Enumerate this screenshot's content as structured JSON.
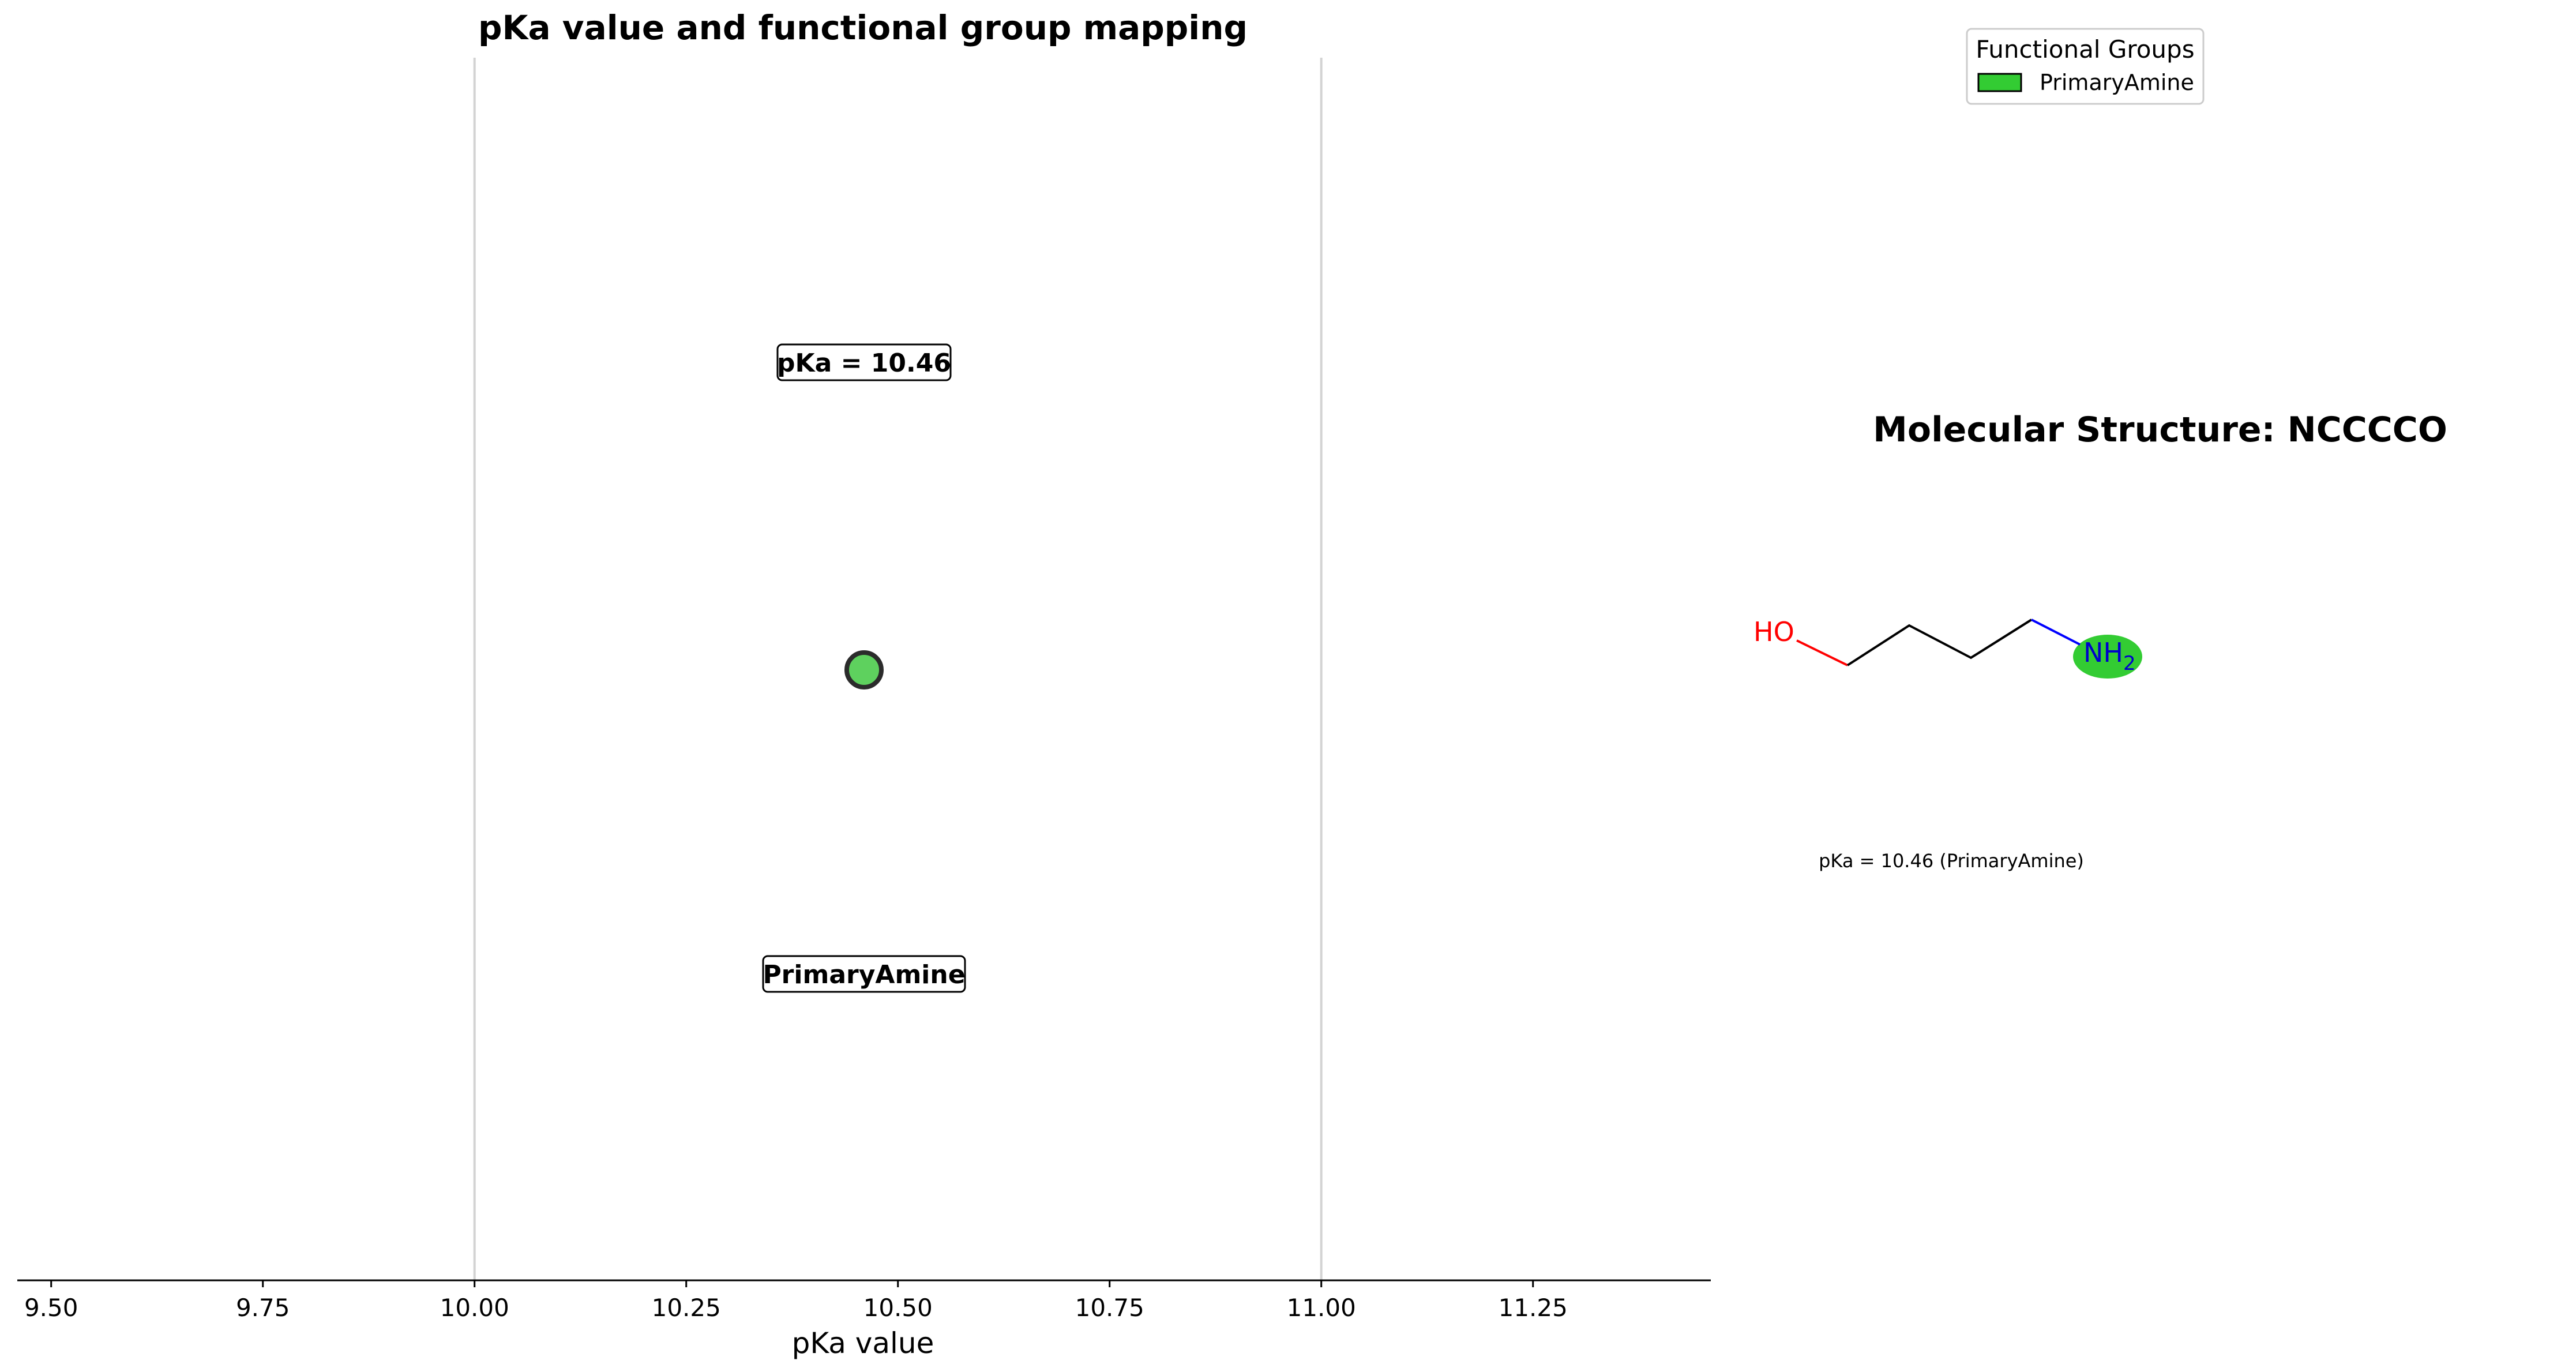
{
  "chart_data": {
    "type": "scatter",
    "title": "pKa value and functional group mapping",
    "xlabel": "pKa value",
    "xlim": [
      9.46,
      11.46
    ],
    "x_ticks": [
      "9.50",
      "9.75",
      "10.00",
      "10.25",
      "10.50",
      "10.75",
      "11.00",
      "11.25"
    ],
    "reference_lines": [
      10.0,
      11.0
    ],
    "points": [
      {
        "x": 10.46,
        "group": "PrimaryAmine",
        "value_label": "pKa = 10.46",
        "group_label": "PrimaryAmine",
        "color": "#5ed15e"
      }
    ],
    "legend": {
      "title": "Functional Groups",
      "placement": "top-right",
      "entries": [
        {
          "label": "PrimaryAmine",
          "color": "#33cc33"
        }
      ]
    }
  },
  "molecule": {
    "title": "Molecular Structure: NCCCCO",
    "atoms": {
      "hydroxyl": "HO",
      "amine": "NH",
      "amine_subscript": "2"
    },
    "caption": "pKa = 10.46 (PrimaryAmine)",
    "highlight_color": "#33cc33"
  }
}
